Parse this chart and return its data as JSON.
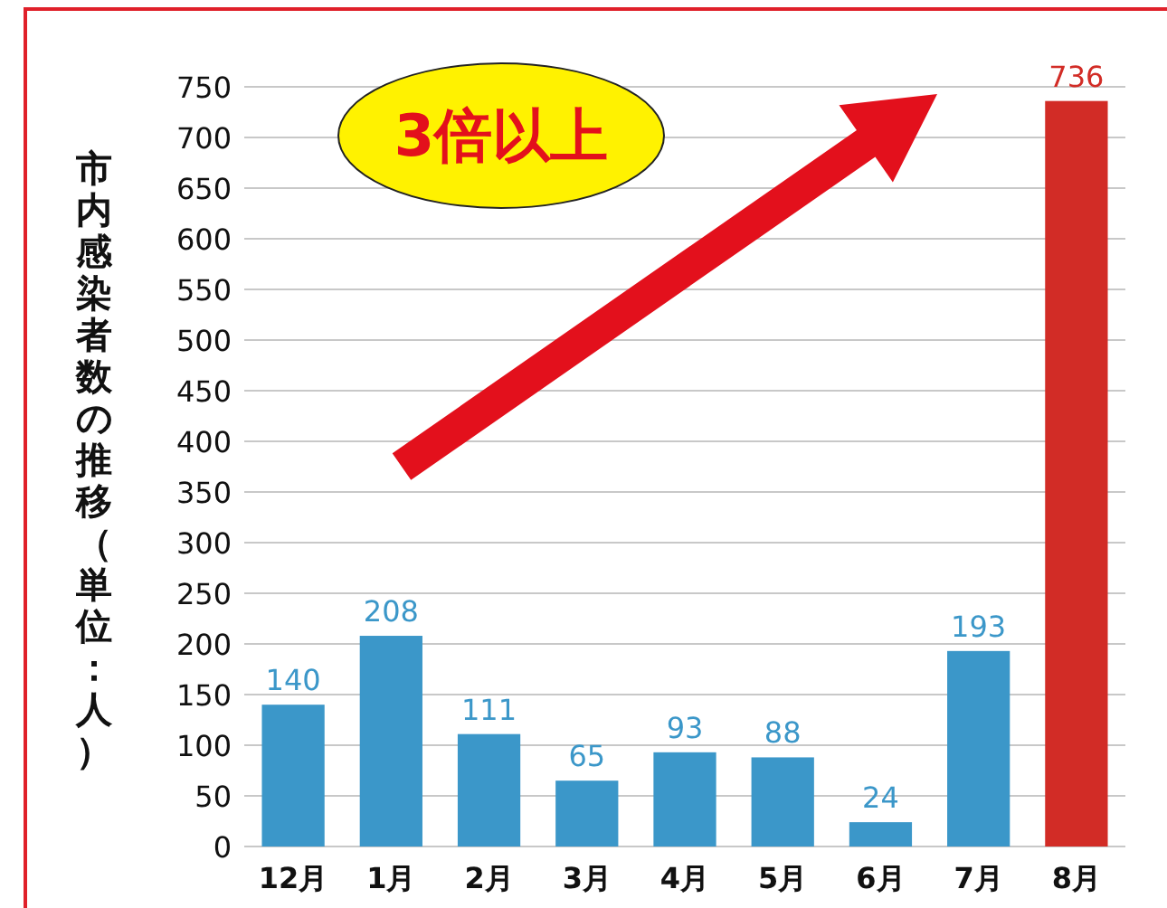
{
  "chart_data": {
    "type": "bar",
    "ylabel": "市内感染者数の推移（単位：人）",
    "categories": [
      "12月",
      "1月",
      "2月",
      "3月",
      "4月",
      "5月",
      "6月",
      "7月",
      "8月"
    ],
    "values": [
      140,
      208,
      111,
      65,
      93,
      88,
      24,
      193,
      736
    ],
    "colors": [
      "#3b97c9",
      "#3b97c9",
      "#3b97c9",
      "#3b97c9",
      "#3b97c9",
      "#3b97c9",
      "#3b97c9",
      "#3b97c9",
      "#d22c26"
    ],
    "ylim": [
      0,
      750
    ],
    "yticks": [
      0,
      50,
      100,
      150,
      200,
      250,
      300,
      350,
      400,
      450,
      500,
      550,
      600,
      650,
      700,
      750
    ],
    "grid": "y",
    "data_labels": true,
    "annotations": [
      "3倍以上"
    ]
  }
}
